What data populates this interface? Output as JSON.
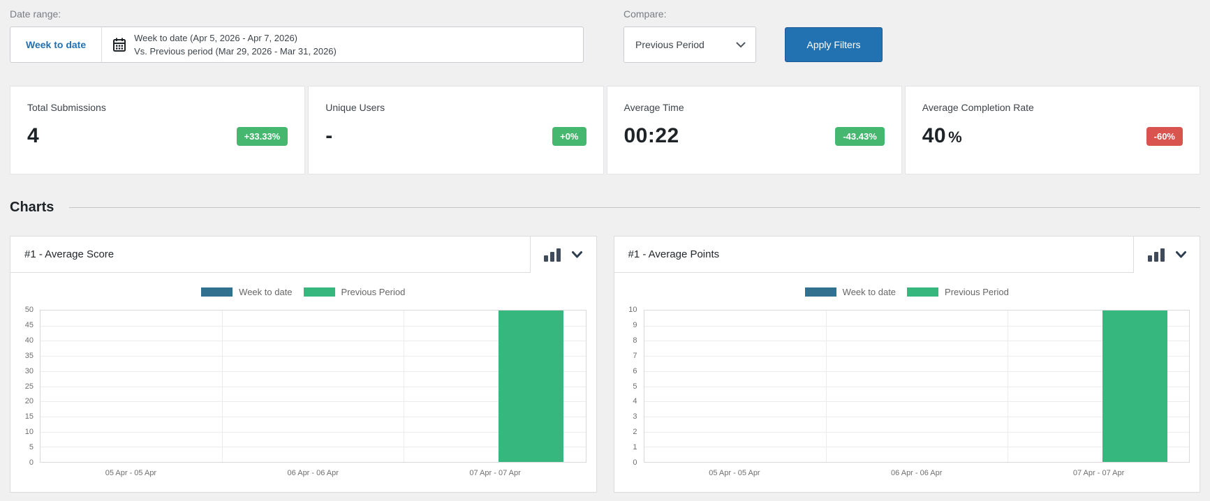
{
  "filters": {
    "date_range_label": "Date range:",
    "preset_label": "Week to date",
    "range_line1": "Week to date (Apr 5, 2026 - Apr 7, 2026)",
    "range_line2": "Vs. Previous period (Mar 29, 2026 - Mar 31, 2026)",
    "compare_label": "Compare:",
    "compare_value": "Previous Period",
    "apply_button": "Apply Filters"
  },
  "stats": [
    {
      "label": "Total Submissions",
      "value": "4",
      "suffix": "",
      "badge": "+33.33%",
      "badge_color": "#45b76f"
    },
    {
      "label": "Unique Users",
      "value": "-",
      "suffix": "",
      "badge": "+0%",
      "badge_color": "#45b76f"
    },
    {
      "label": "Average Time",
      "value": "00:22",
      "suffix": "",
      "badge": "-43.43%",
      "badge_color": "#45b76f"
    },
    {
      "label": "Average Completion Rate",
      "value": "40",
      "suffix": "%",
      "badge": "-60%",
      "badge_color": "#d9534f"
    }
  ],
  "charts_section": {
    "heading": "Charts"
  },
  "charts": [
    {
      "title": "#1 - Average Score",
      "chart_data": {
        "type": "bar",
        "title": "#1 - Average Score",
        "categories": [
          "05 Apr - 05 Apr",
          "06 Apr - 06 Apr",
          "07 Apr - 07 Apr"
        ],
        "series": [
          {
            "name": "Week to date",
            "color": "#31708f",
            "values": [
              0,
              0,
              0
            ]
          },
          {
            "name": "Previous Period",
            "color": "#36b77e",
            "values": [
              0,
              0,
              50
            ]
          }
        ],
        "ylim": [
          0,
          50
        ],
        "ytick_step": 5,
        "grid": true,
        "legend_position": "top"
      }
    },
    {
      "title": "#1 - Average Points",
      "chart_data": {
        "type": "bar",
        "title": "#1 - Average Points",
        "categories": [
          "05 Apr - 05 Apr",
          "06 Apr - 06 Apr",
          "07 Apr - 07 Apr"
        ],
        "series": [
          {
            "name": "Week to date",
            "color": "#31708f",
            "values": [
              0,
              0,
              0
            ]
          },
          {
            "name": "Previous Period",
            "color": "#36b77e",
            "values": [
              0,
              0,
              10
            ]
          }
        ],
        "ylim": [
          0,
          10
        ],
        "ytick_step": 1,
        "grid": true,
        "legend_position": "top"
      }
    }
  ],
  "colors": {
    "accent_blue": "#2271b1",
    "badge_green": "#45b76f",
    "badge_red": "#d9534f",
    "series_blue": "#31708f",
    "series_green": "#36b77e",
    "page_background": "#f0f0f1"
  },
  "icons": {
    "calendar": "calendar-icon",
    "select_caret": "chevron-down-icon",
    "chart_type": "bar-chart-icon",
    "collapse": "chevron-down-icon"
  }
}
